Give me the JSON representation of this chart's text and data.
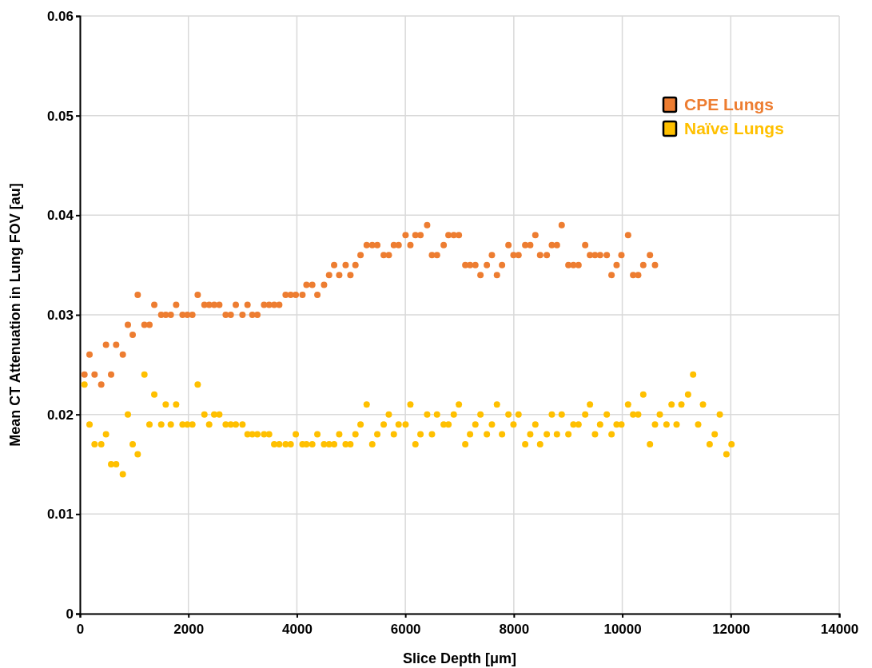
{
  "chart_data": {
    "type": "scatter",
    "xlabel": "Slice Depth [μm]",
    "ylabel": "Mean CT Attenuation in Lung FOV [au]",
    "xlim": [
      0,
      14000
    ],
    "xticks": [
      0,
      2000,
      4000,
      6000,
      8000,
      10000,
      12000,
      14000
    ],
    "ylim": [
      0,
      0.06
    ],
    "yticks": [
      0,
      0.01,
      0.02,
      0.03,
      0.04,
      0.05,
      0.06
    ],
    "grid": true,
    "legend": "top right",
    "marker": "circle",
    "series": [
      {
        "name": "CPE Lungs",
        "color": "#ed7d31",
        "x": [
          84,
          177,
          270,
          393,
          481,
          575,
          668,
          791,
          884,
          973,
          1066,
          1189,
          1282,
          1371,
          1499,
          1582,
          1675,
          1774,
          1892,
          1980,
          2073,
          2172,
          2295,
          2383,
          2476,
          2570,
          2688,
          2781,
          2874,
          2997,
          3090,
          3179,
          3272,
          3395,
          3488,
          3582,
          3675,
          3793,
          3886,
          3980,
          4103,
          4177,
          4284,
          4378,
          4501,
          4594,
          4687,
          4781,
          4899,
          4987,
          5080,
          5174,
          5287,
          5390,
          5483,
          5601,
          5695,
          5788,
          5876,
          6004,
          6093,
          6186,
          6279,
          6402,
          6491,
          6584,
          6707,
          6795,
          6893,
          6987,
          7105,
          7193,
          7291,
          7385,
          7503,
          7596,
          7689,
          7783,
          7901,
          7994,
          8087,
          8210,
          8303,
          8397,
          8485,
          8608,
          8701,
          8795,
          8883,
          9006,
          9099,
          9193,
          9316,
          9404,
          9497,
          9591,
          9714,
          9802,
          9895,
          9984,
          10107,
          10200,
          10293,
          10387,
          10510,
          10603
        ],
        "values": [
          0.024,
          0.026,
          0.024,
          0.023,
          0.027,
          0.024,
          0.027,
          0.026,
          0.029,
          0.028,
          0.032,
          0.029,
          0.029,
          0.031,
          0.03,
          0.03,
          0.03,
          0.031,
          0.03,
          0.03,
          0.03,
          0.032,
          0.031,
          0.031,
          0.031,
          0.031,
          0.03,
          0.03,
          0.031,
          0.03,
          0.031,
          0.03,
          0.03,
          0.031,
          0.031,
          0.031,
          0.031,
          0.032,
          0.032,
          0.032,
          0.032,
          0.033,
          0.033,
          0.032,
          0.033,
          0.034,
          0.035,
          0.034,
          0.035,
          0.034,
          0.035,
          0.036,
          0.037,
          0.037,
          0.037,
          0.036,
          0.036,
          0.037,
          0.037,
          0.038,
          0.037,
          0.038,
          0.038,
          0.039,
          0.036,
          0.036,
          0.037,
          0.038,
          0.038,
          0.038,
          0.035,
          0.035,
          0.035,
          0.034,
          0.035,
          0.036,
          0.034,
          0.035,
          0.037,
          0.036,
          0.036,
          0.037,
          0.037,
          0.038,
          0.036,
          0.036,
          0.037,
          0.037,
          0.039,
          0.035,
          0.035,
          0.035,
          0.037,
          0.036,
          0.036,
          0.036,
          0.036,
          0.034,
          0.035,
          0.036,
          0.038,
          0.034,
          0.034,
          0.035,
          0.036,
          0.035
        ]
      },
      {
        "name": "Naïve Lungs",
        "color": "#ffc000",
        "x": [
          84,
          177,
          270,
          393,
          481,
          575,
          668,
          791,
          884,
          973,
          1066,
          1189,
          1282,
          1371,
          1499,
          1582,
          1675,
          1774,
          1892,
          1980,
          2073,
          2172,
          2295,
          2383,
          2476,
          2570,
          2688,
          2781,
          2874,
          2997,
          3090,
          3179,
          3272,
          3395,
          3488,
          3582,
          3675,
          3793,
          3886,
          3980,
          4103,
          4177,
          4284,
          4378,
          4501,
          4594,
          4687,
          4781,
          4899,
          4987,
          5080,
          5174,
          5287,
          5390,
          5483,
          5601,
          5695,
          5788,
          5876,
          6004,
          6093,
          6186,
          6279,
          6402,
          6491,
          6584,
          6707,
          6795,
          6893,
          6987,
          7105,
          7193,
          7291,
          7385,
          7503,
          7596,
          7689,
          7783,
          7901,
          7994,
          8087,
          8210,
          8303,
          8397,
          8485,
          8608,
          8701,
          8795,
          8883,
          9006,
          9099,
          9193,
          9316,
          9404,
          9497,
          9591,
          9714,
          9802,
          9895,
          9984,
          10107,
          10200,
          10293,
          10387,
          10510,
          10603,
          10692,
          10815,
          10908,
          11001,
          11090,
          11213,
          11306,
          11399,
          11488,
          11611,
          11704,
          11798,
          11920,
          12014
        ],
        "values": [
          0.023,
          0.019,
          0.017,
          0.017,
          0.018,
          0.015,
          0.015,
          0.014,
          0.02,
          0.017,
          0.016,
          0.024,
          0.019,
          0.022,
          0.019,
          0.021,
          0.019,
          0.021,
          0.019,
          0.019,
          0.019,
          0.023,
          0.02,
          0.019,
          0.02,
          0.02,
          0.019,
          0.019,
          0.019,
          0.019,
          0.018,
          0.018,
          0.018,
          0.018,
          0.018,
          0.017,
          0.017,
          0.017,
          0.017,
          0.018,
          0.017,
          0.017,
          0.017,
          0.018,
          0.017,
          0.017,
          0.017,
          0.018,
          0.017,
          0.017,
          0.018,
          0.019,
          0.021,
          0.017,
          0.018,
          0.019,
          0.02,
          0.018,
          0.019,
          0.019,
          0.021,
          0.017,
          0.018,
          0.02,
          0.018,
          0.02,
          0.019,
          0.019,
          0.02,
          0.021,
          0.017,
          0.018,
          0.019,
          0.02,
          0.018,
          0.019,
          0.021,
          0.018,
          0.02,
          0.019,
          0.02,
          0.017,
          0.018,
          0.019,
          0.017,
          0.018,
          0.02,
          0.018,
          0.02,
          0.018,
          0.019,
          0.019,
          0.02,
          0.021,
          0.018,
          0.019,
          0.02,
          0.018,
          0.019,
          0.019,
          0.021,
          0.02,
          0.02,
          0.022,
          0.017,
          0.019,
          0.02,
          0.019,
          0.021,
          0.019,
          0.021,
          0.022,
          0.024,
          0.019,
          0.021,
          0.017,
          0.018,
          0.02,
          0.016,
          0.017
        ]
      }
    ]
  }
}
